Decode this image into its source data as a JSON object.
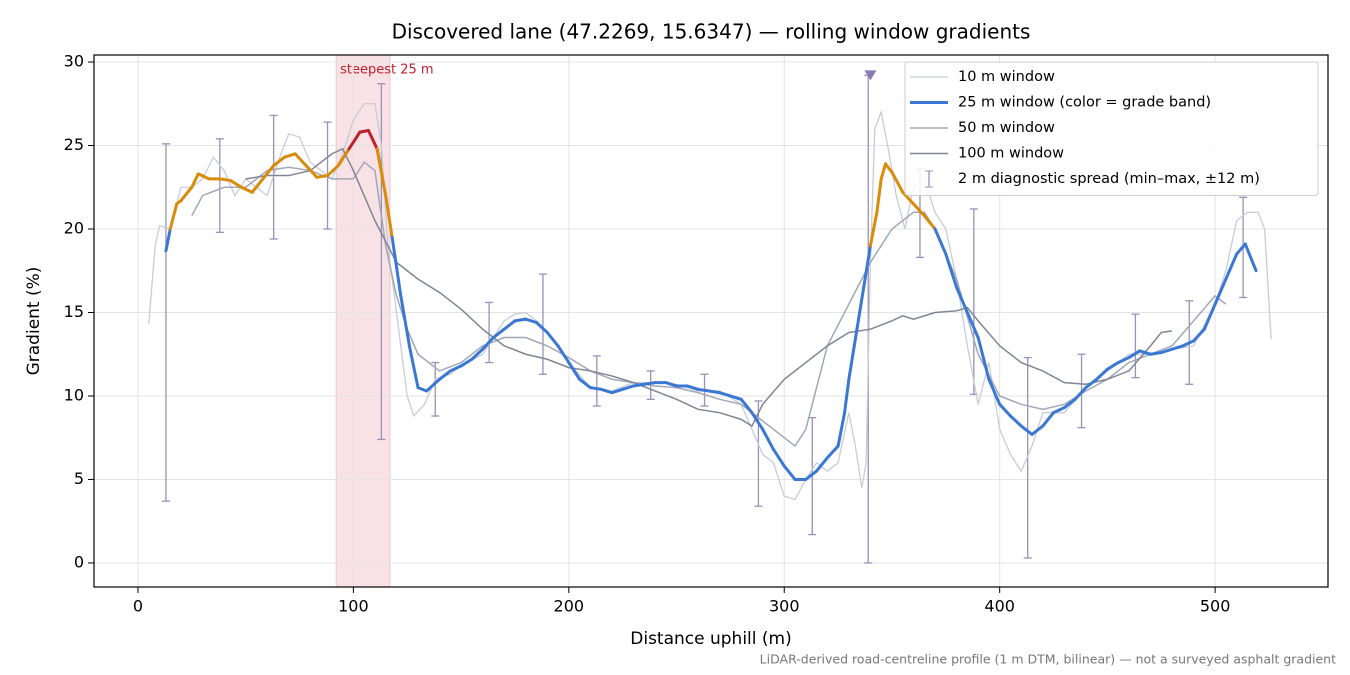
{
  "chart_data": {
    "type": "line",
    "title": "Discovered lane (47.2269, 15.6347) — rolling window gradients",
    "xlabel": "Distance uphill (m)",
    "ylabel": "Gradient (%)",
    "note": "LiDAR-derived road-centreline profile (1 m DTM, bilinear) — not a surveyed asphalt gradient",
    "xlim": [
      -20.4,
      552.4
    ],
    "ylim": [
      -1.44,
      30.42
    ],
    "xticks": [
      0,
      100,
      200,
      300,
      400,
      500
    ],
    "yticks": [
      0,
      5,
      10,
      15,
      20,
      25,
      30
    ],
    "grid": true,
    "legend": "upper right",
    "highlight": {
      "label": "steepest 25 m",
      "x": [
        92,
        117
      ],
      "color": "#e8a0a8",
      "text_color": "#c0202e"
    },
    "series": [
      {
        "name": "10 m window",
        "color": "#c8ccd6",
        "width": 1.3,
        "x": [
          5,
          8,
          10,
          15,
          20,
          25,
          30,
          35,
          40,
          45,
          50,
          55,
          60,
          65,
          70,
          75,
          80,
          85,
          90,
          95,
          100,
          105,
          110,
          113,
          116,
          120,
          125,
          128,
          133,
          138,
          145,
          150,
          160,
          170,
          175,
          180,
          185,
          190,
          200,
          210,
          220,
          230,
          240,
          250,
          260,
          270,
          280,
          290,
          295,
          300,
          305,
          310,
          315,
          320,
          325,
          330,
          333,
          336,
          338,
          340,
          342,
          345,
          348,
          352,
          356,
          360,
          365,
          370,
          375,
          380,
          385,
          390,
          395,
          400,
          405,
          410,
          415,
          420,
          430,
          440,
          450,
          460,
          470,
          480,
          490,
          500,
          505,
          510,
          515,
          520,
          523,
          526
        ],
        "values": [
          14.3,
          19,
          20.2,
          20,
          22.5,
          22.5,
          23,
          24.3,
          23.5,
          22,
          23,
          22.5,
          22,
          24,
          25.7,
          25.5,
          24,
          23.5,
          23,
          24.5,
          26.5,
          27.5,
          27.5,
          25,
          19,
          15,
          10,
          8.8,
          9.5,
          11,
          11.3,
          11.8,
          12.5,
          14.5,
          14.9,
          15,
          14.5,
          13.8,
          12,
          10.5,
          10.3,
          10.8,
          10.8,
          10.7,
          10.3,
          10.3,
          9.5,
          6.5,
          6,
          4,
          3.8,
          5,
          6,
          5.5,
          6,
          9,
          7,
          4.5,
          6,
          18,
          26,
          27,
          25,
          22,
          20,
          22.5,
          23,
          21,
          20,
          17,
          13,
          9.5,
          12,
          8,
          6.5,
          5.5,
          7,
          9,
          9,
          10.5,
          11.5,
          12.5,
          12.5,
          12.8,
          13,
          15.5,
          17.5,
          20.5,
          21,
          21,
          20,
          13.4
        ]
      },
      {
        "name": "25 m window (color = grade band)",
        "color": "#3a78d4",
        "width": 3,
        "bands": [
          {
            "below": 20,
            "color": "#3a78d4"
          },
          {
            "below": 25,
            "color": "#d98b0a"
          },
          {
            "below": 100,
            "color": "#c0202e"
          }
        ],
        "x": [
          13,
          15,
          18,
          20,
          25,
          28,
          33,
          38,
          43,
          48,
          53,
          58,
          63,
          68,
          73,
          78,
          83,
          88,
          93,
          98,
          103,
          107,
          111,
          115,
          118,
          122,
          126,
          130,
          134,
          140,
          145,
          150,
          155,
          160,
          165,
          170,
          175,
          180,
          185,
          190,
          195,
          200,
          205,
          210,
          215,
          220,
          225,
          230,
          235,
          240,
          245,
          250,
          255,
          260,
          265,
          270,
          275,
          280,
          285,
          290,
          295,
          300,
          305,
          310,
          315,
          320,
          325,
          328,
          330,
          335,
          340,
          343,
          345,
          347,
          350,
          355,
          360,
          365,
          370,
          375,
          380,
          385,
          390,
          395,
          400,
          405,
          410,
          415,
          420,
          425,
          430,
          435,
          440,
          445,
          450,
          455,
          460,
          465,
          470,
          475,
          480,
          485,
          490,
          495,
          500,
          505,
          510,
          514,
          519
        ],
        "values": [
          18.7,
          20,
          21.5,
          21.7,
          22.5,
          23.3,
          23,
          23,
          22.9,
          22.5,
          22.2,
          23,
          23.8,
          24.3,
          24.5,
          23.8,
          23.1,
          23.2,
          23.8,
          24.8,
          25.8,
          25.9,
          24.8,
          22,
          19.5,
          16,
          13,
          10.5,
          10.3,
          11,
          11.5,
          11.8,
          12.2,
          12.8,
          13.5,
          14,
          14.5,
          14.6,
          14.4,
          13.8,
          13,
          12,
          11,
          10.5,
          10.4,
          10.2,
          10.4,
          10.6,
          10.7,
          10.8,
          10.8,
          10.6,
          10.6,
          10.4,
          10.3,
          10.2,
          10,
          9.8,
          9,
          8,
          6.8,
          5.8,
          5,
          5,
          5.5,
          6.3,
          7,
          9,
          11,
          15,
          19,
          21,
          23,
          23.9,
          23.4,
          22.2,
          21.5,
          20.8,
          20,
          18.5,
          16.5,
          15,
          13.5,
          11,
          9.5,
          8.8,
          8.2,
          7.7,
          8.2,
          9,
          9.3,
          9.8,
          10.5,
          11,
          11.6,
          12,
          12.3,
          12.7,
          12.5,
          12.6,
          12.8,
          13,
          13.3,
          14,
          15.5,
          17,
          18.5,
          19.1,
          17.5
        ]
      },
      {
        "name": "50 m window",
        "color": "#a0a8b8",
        "width": 1.5,
        "x": [
          25,
          30,
          40,
          50,
          60,
          70,
          80,
          90,
          100,
          105,
          110,
          115,
          120,
          125,
          130,
          140,
          150,
          160,
          170,
          180,
          190,
          200,
          210,
          220,
          230,
          240,
          250,
          260,
          270,
          280,
          290,
          300,
          305,
          310,
          315,
          320,
          330,
          340,
          350,
          360,
          365,
          370,
          380,
          390,
          400,
          410,
          420,
          430,
          440,
          450,
          460,
          470,
          480,
          490,
          500,
          505
        ],
        "values": [
          20.8,
          22,
          22.5,
          22.5,
          23.5,
          23.7,
          23.5,
          23,
          23,
          24,
          23.5,
          19,
          16,
          14,
          12.5,
          11.5,
          12,
          13,
          13.5,
          13.5,
          13,
          12.3,
          11.5,
          11,
          10.8,
          10.6,
          10.5,
          10.2,
          9.8,
          9.5,
          8.5,
          7.5,
          7,
          8,
          10.5,
          13,
          15.5,
          18,
          20,
          21,
          21,
          20,
          17,
          12.5,
          10,
          9.5,
          9.2,
          9.5,
          10.3,
          11,
          12,
          12.5,
          13,
          14.5,
          16,
          15.5
        ]
      },
      {
        "name": "100 m window",
        "color": "#808494",
        "width": 1.5,
        "x": [
          50,
          60,
          70,
          80,
          90,
          95,
          100,
          110,
          120,
          130,
          140,
          150,
          160,
          170,
          180,
          190,
          200,
          210,
          220,
          230,
          240,
          250,
          260,
          270,
          280,
          285,
          290,
          300,
          310,
          320,
          330,
          340,
          350,
          355,
          360,
          370,
          380,
          385,
          390,
          400,
          410,
          420,
          430,
          440,
          450,
          460,
          470,
          475,
          480
        ],
        "values": [
          23,
          23.2,
          23.2,
          23.5,
          24.5,
          24.8,
          23.5,
          20.5,
          18,
          17,
          16.2,
          15.2,
          14,
          13,
          12.5,
          12.2,
          11.7,
          11.5,
          11.2,
          10.8,
          10.3,
          9.8,
          9.2,
          9,
          8.6,
          8.2,
          9.5,
          11,
          12,
          13,
          13.8,
          14,
          14.5,
          14.8,
          14.6,
          15,
          15.1,
          15.3,
          14.5,
          13,
          12,
          11.5,
          10.8,
          10.7,
          11,
          11.5,
          13,
          13.8,
          13.9
        ]
      }
    ],
    "errorbars": {
      "name": "2 m diagnostic spread (min–max, ±12 m)",
      "color": "#9a90b8",
      "x": [
        13,
        38,
        63,
        88,
        113,
        138,
        163,
        188,
        213,
        238,
        263,
        288,
        313,
        339,
        363,
        388,
        413,
        438,
        463,
        488,
        513
      ],
      "low": [
        3.7,
        19.8,
        19.4,
        20,
        7.4,
        8.8,
        12,
        11.3,
        9.4,
        9.8,
        9.4,
        3.4,
        1.7,
        0,
        18.3,
        10.1,
        0.3,
        8.1,
        11.1,
        10.7,
        15.9
      ],
      "high": [
        25.1,
        25.4,
        26.8,
        26.4,
        28.7,
        12,
        15.6,
        17.3,
        12.4,
        11.5,
        11.3,
        9.7,
        8.7,
        29.2,
        23.6,
        21.2,
        12.3,
        12.5,
        14.9,
        15.7,
        21.9
      ]
    },
    "markers": {
      "shape": "triangle-down",
      "color": "#8a7ab0",
      "x": [
        340
      ],
      "values": [
        29.2
      ]
    }
  }
}
